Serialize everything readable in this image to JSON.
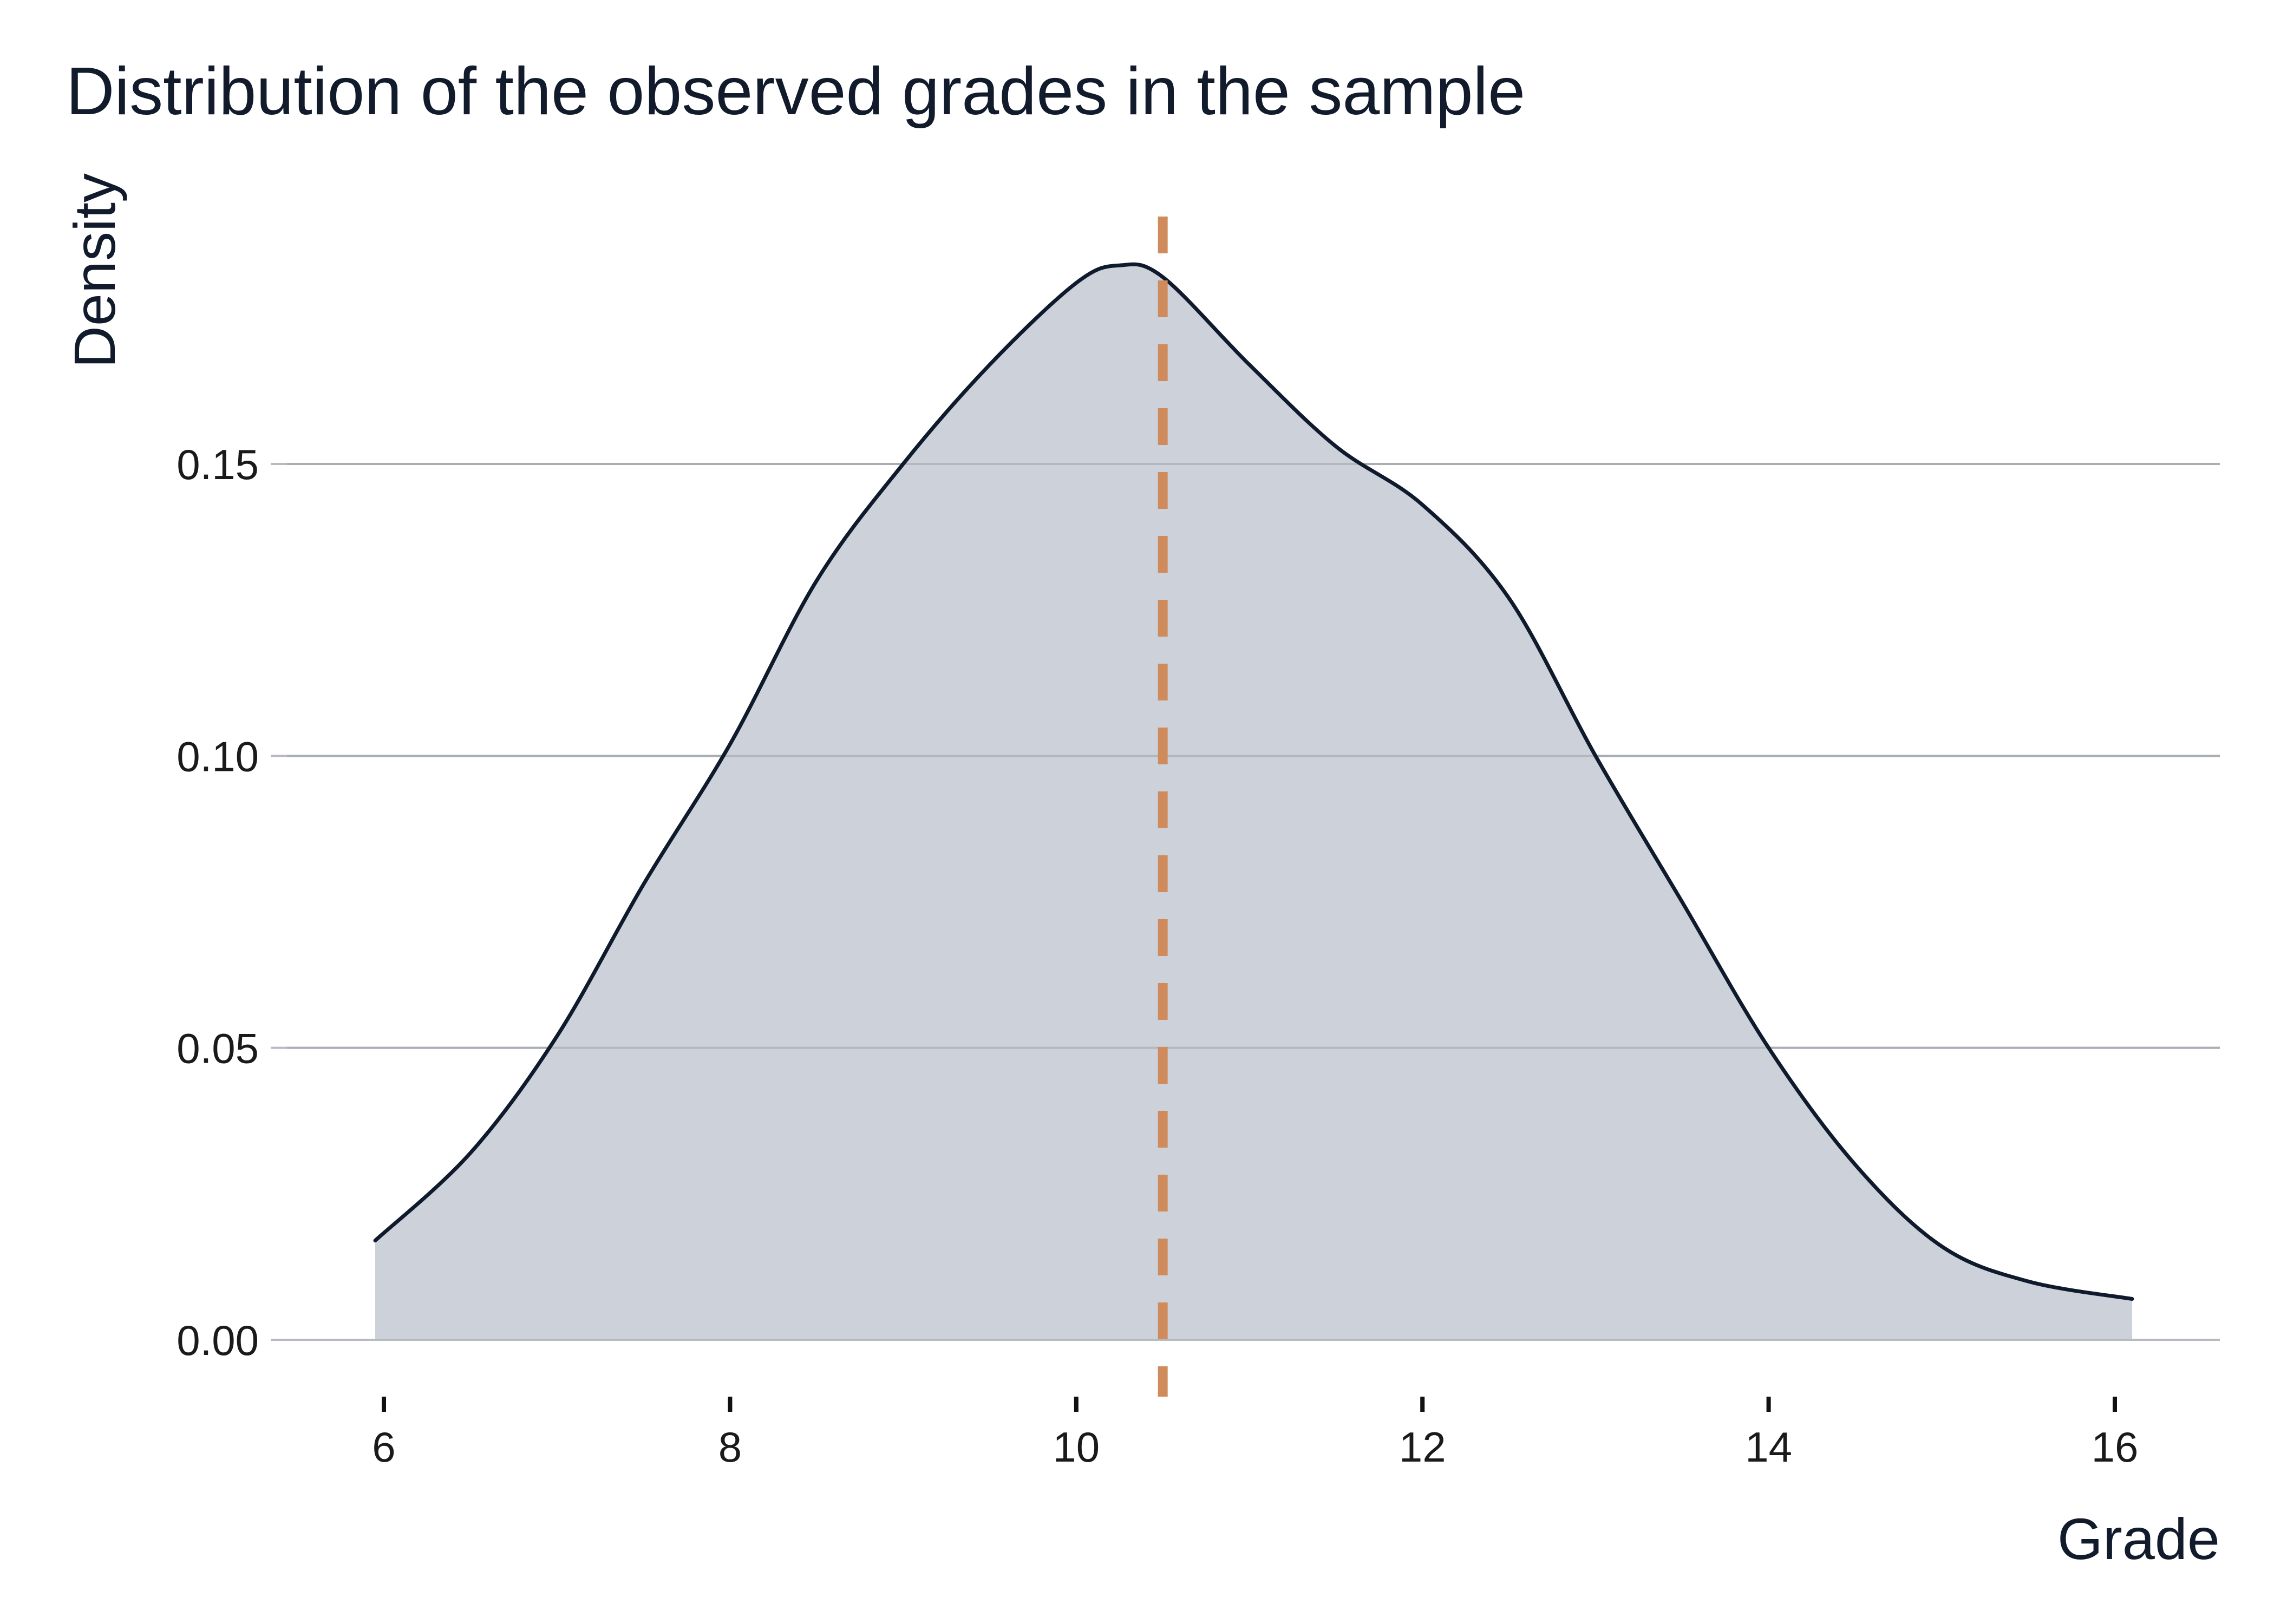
{
  "chart_data": {
    "type": "area",
    "title": "Distribution of the observed grades in the sample",
    "xlabel": "Grade",
    "ylabel": "Density",
    "xlim": [
      5.5,
      16.6
    ],
    "ylim": [
      0,
      0.19
    ],
    "x_ticks": [
      6,
      8,
      10,
      12,
      14,
      16
    ],
    "y_ticks": [
      0.0,
      0.05,
      0.1,
      0.15
    ],
    "grid": "horizontal",
    "legend": "none",
    "series": [
      {
        "x": [
          5.95,
          6.5,
          7.0,
          7.5,
          8.0,
          8.5,
          9.0,
          9.5,
          10.0,
          10.25,
          10.5,
          11.0,
          11.5,
          12.0,
          12.5,
          13.0,
          13.5,
          14.0,
          14.5,
          15.0,
          15.5,
          16.1
        ],
        "y": [
          0.017,
          0.032,
          0.052,
          0.078,
          0.102,
          0.13,
          0.15,
          0.167,
          0.181,
          0.184,
          0.182,
          0.167,
          0.153,
          0.143,
          0.127,
          0.1,
          0.075,
          0.05,
          0.03,
          0.016,
          0.01,
          0.007
        ]
      }
    ],
    "reference_line": {
      "x": 10.5,
      "style": "dashed"
    },
    "colors": {
      "fill": "#cdd2da",
      "line": "#0f1b2d",
      "grid": "#b7bac0",
      "reference": "#cf8b5b",
      "text": "#111b2b"
    }
  }
}
